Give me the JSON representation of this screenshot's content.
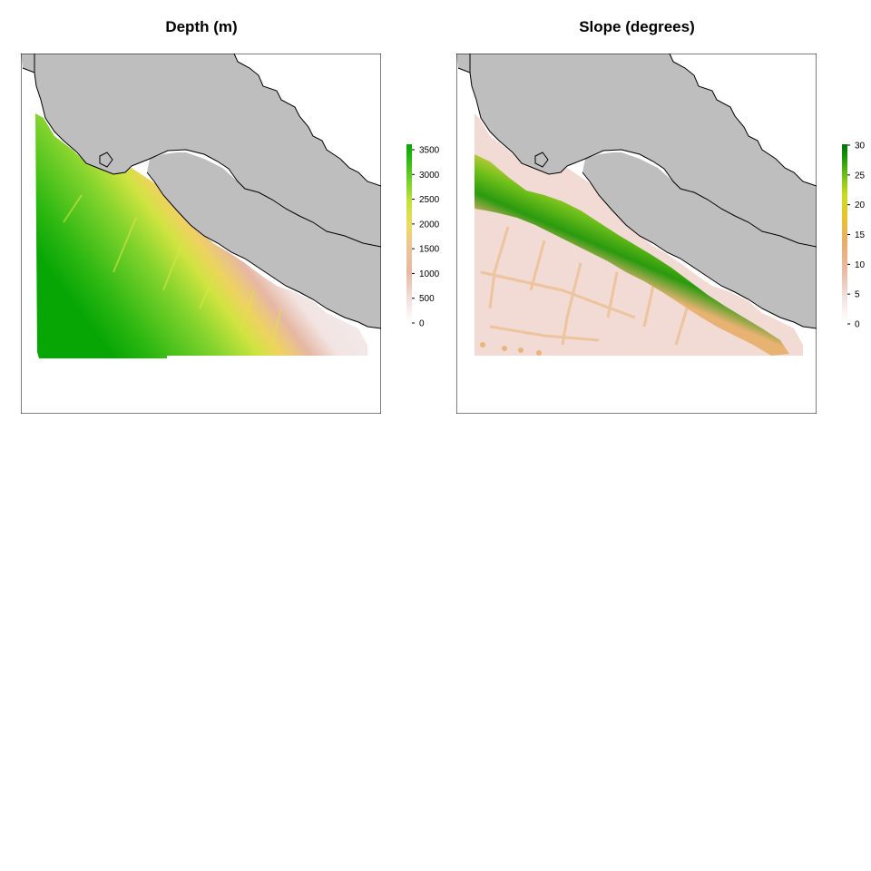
{
  "panels": [
    {
      "id": "depth",
      "title": "Depth (m)",
      "legend": {
        "ticks": [
          "0",
          "500",
          "1000",
          "1500",
          "2000",
          "2500",
          "3000",
          "3500"
        ],
        "colors": [
          "#ffffff",
          "#f2e4e2",
          "#e8b9a4",
          "#ecc49a",
          "#eedb5e",
          "#c4e13c",
          "#71d02a",
          "#2cb612",
          "#07a705"
        ]
      }
    },
    {
      "id": "slope",
      "title": "Slope (degrees)",
      "legend": {
        "ticks": [
          "0",
          "5",
          "10",
          "15",
          "20",
          "25",
          "30"
        ],
        "colors": [
          "#ffffff",
          "#f4e8e7",
          "#ebbaaa",
          "#e8ad6b",
          "#e6c62c",
          "#c6dc1e",
          "#64bd16",
          "#118f0a",
          "#03720a"
        ]
      }
    }
  ],
  "land_color": "#bebebe"
}
